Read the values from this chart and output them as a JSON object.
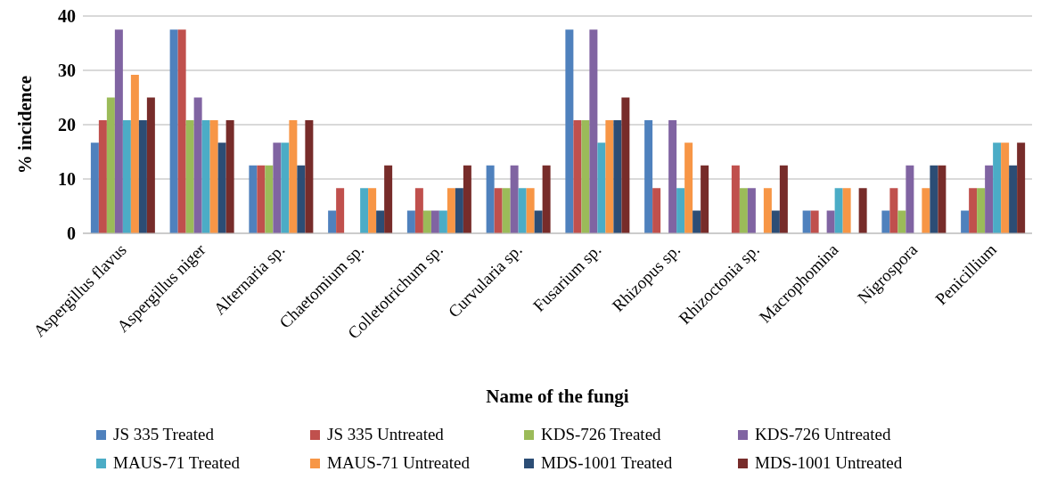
{
  "chart_data": {
    "type": "bar",
    "categories": [
      "Aspergillus flavus",
      "Aspergillus niger",
      "Alternaria sp.",
      "Chaetomium sp.",
      "Colletotrichum sp.",
      "Curvularia sp.",
      "Fusarium sp.",
      "Rhizopus sp.",
      "Rhizoctonia sp.",
      "Macrophomina",
      "Nigrospora",
      "Penicillium"
    ],
    "series": [
      {
        "name": "JS 335 Treated",
        "color": "#4f81bd",
        "values": [
          16.7,
          37.5,
          12.5,
          4.2,
          4.2,
          12.5,
          37.5,
          20.8,
          0,
          4.2,
          4.2,
          4.2
        ]
      },
      {
        "name": "JS 335 Untreated",
        "color": "#c0504d",
        "values": [
          20.8,
          37.5,
          12.5,
          8.3,
          8.3,
          8.3,
          20.8,
          8.3,
          12.5,
          4.2,
          8.3,
          8.3
        ]
      },
      {
        "name": "KDS-726 Treated",
        "color": "#9bbb59",
        "values": [
          25,
          20.8,
          12.5,
          0,
          4.2,
          8.3,
          20.8,
          0,
          8.3,
          0,
          4.2,
          8.3
        ]
      },
      {
        "name": "KDS-726 Untreated",
        "color": "#8064a2",
        "values": [
          37.5,
          25,
          16.7,
          0,
          4.2,
          12.5,
          37.5,
          20.8,
          8.3,
          4.2,
          12.5,
          12.5
        ]
      },
      {
        "name": "MAUS-71 Treated",
        "color": "#4bacc6",
        "values": [
          20.8,
          20.8,
          16.7,
          8.3,
          4.2,
          8.3,
          16.7,
          8.3,
          0,
          8.3,
          0,
          16.7
        ]
      },
      {
        "name": "MAUS-71 Untreated",
        "color": "#f79646",
        "values": [
          29.2,
          20.8,
          20.8,
          8.3,
          8.3,
          8.3,
          20.8,
          16.7,
          8.3,
          8.3,
          8.3,
          16.7
        ]
      },
      {
        "name": "MDS-1001 Treated",
        "color": "#2c4d75",
        "values": [
          20.8,
          16.7,
          12.5,
          4.2,
          8.3,
          4.2,
          20.8,
          4.2,
          4.2,
          0,
          12.5,
          12.5
        ]
      },
      {
        "name": "MDS-1001 Untreated",
        "color": "#772c2a",
        "values": [
          25,
          20.8,
          20.8,
          12.5,
          12.5,
          12.5,
          25,
          12.5,
          12.5,
          8.3,
          12.5,
          16.7
        ]
      }
    ],
    "xlabel": "Name of the fungi",
    "ylabel": "% incidence",
    "ylim": [
      0,
      40
    ],
    "yticks": [
      0,
      10,
      20,
      30,
      40
    ],
    "grid": "y",
    "legend": "bottom"
  }
}
